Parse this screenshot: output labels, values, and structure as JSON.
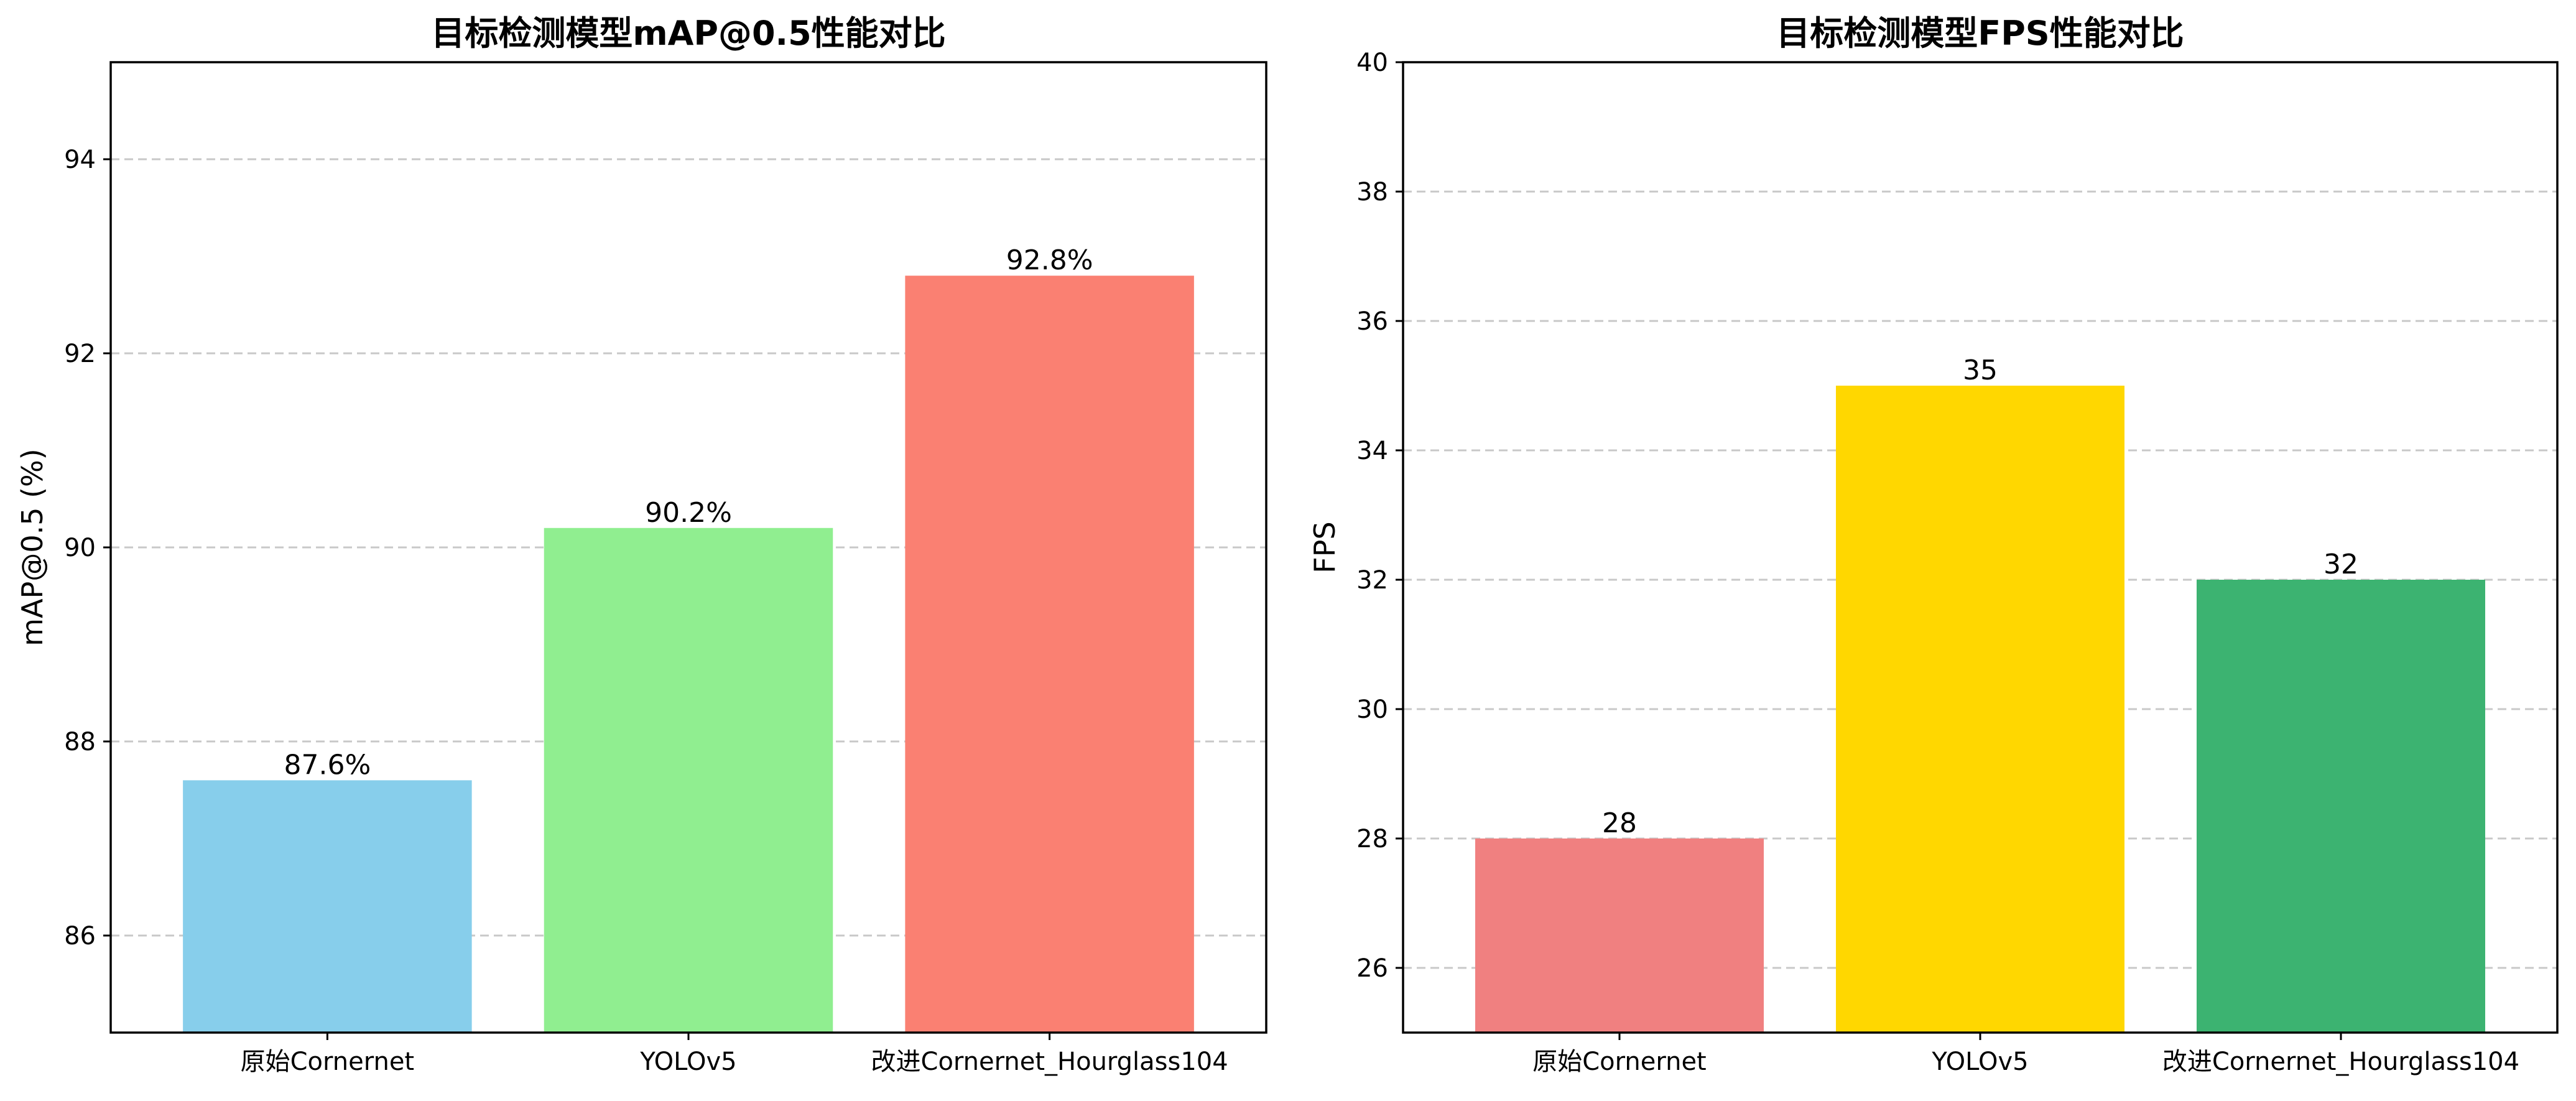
{
  "chart_data": [
    {
      "type": "bar",
      "title": "目标检测模型mAP@0.5性能对比",
      "xlabel": "",
      "ylabel": "mAP@0.5 (%)",
      "categories": [
        "原始Cornernet",
        "YOLOv5",
        "改进Cornernet_Hourglass104"
      ],
      "values": [
        87.6,
        90.2,
        92.8
      ],
      "value_labels": [
        "87.6%",
        "90.2%",
        "92.8%"
      ],
      "colors": [
        "#87ceeb",
        "#90ee90",
        "#fa8072"
      ],
      "ylim": [
        85,
        95
      ],
      "yticks": [
        86,
        88,
        90,
        92,
        94
      ],
      "grid": "y-dashed",
      "legend": "none"
    },
    {
      "type": "bar",
      "title": "目标检测模型FPS性能对比",
      "xlabel": "",
      "ylabel": "FPS",
      "categories": [
        "原始Cornernet",
        "YOLOv5",
        "改进Cornernet_Hourglass104"
      ],
      "values": [
        28,
        35,
        32
      ],
      "value_labels": [
        "28",
        "35",
        "32"
      ],
      "colors": [
        "#f08080",
        "#ffd700",
        "#3cb371"
      ],
      "ylim": [
        25,
        40
      ],
      "yticks": [
        26,
        28,
        30,
        32,
        34,
        36,
        38,
        40
      ],
      "grid": "y-dashed",
      "legend": "none"
    }
  ]
}
